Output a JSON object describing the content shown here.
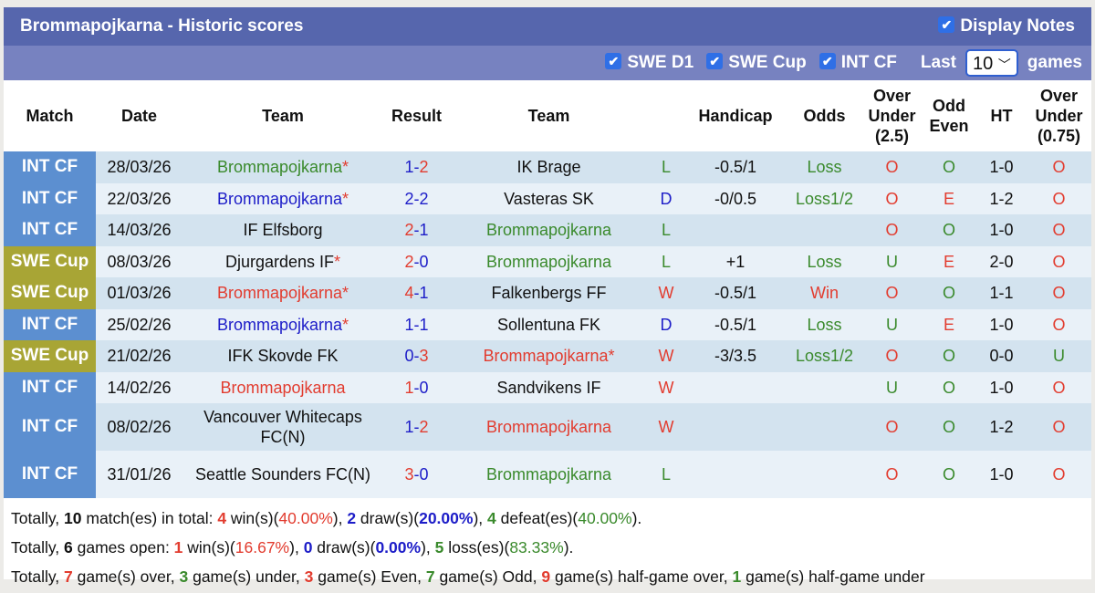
{
  "title": "Brommapojkarna - Historic scores",
  "display_notes": {
    "label": "Display Notes",
    "checked": true
  },
  "filters": [
    {
      "label": "SWE D1",
      "checked": true
    },
    {
      "label": "SWE Cup",
      "checked": true
    },
    {
      "label": "INT CF",
      "checked": true
    }
  ],
  "last_label": "Last",
  "last_value": "10",
  "games_label": "games",
  "headers": [
    "Match",
    "Date",
    "Team",
    "Result",
    "Team",
    "",
    "Handicap",
    "Odds",
    "Over Under (2.5)",
    "Odd Even",
    "HT",
    "Over Under (0.75)"
  ],
  "colors": {
    "red": "#e23c2f",
    "green": "#3a8a2c",
    "blue": "#1d1dc8",
    "int_cf": "#5c8fd0",
    "swe_cup": "#a8a535",
    "title_bar": "#5666ad",
    "filter_bar": "#7782c0"
  },
  "rows": [
    {
      "match": "INT CF",
      "date": "28/03/26",
      "home": "Brommapojkarna",
      "home_c": "g",
      "home_star": true,
      "h": "1",
      "a": "2",
      "hc": "b",
      "ac": "r",
      "away": "IK Brage",
      "away_c": "k",
      "away_star": false,
      "wl": "L",
      "wl_c": "g",
      "handicap": "-0.5/1",
      "odds": "Loss",
      "odds_c": "g",
      "ou": "O",
      "ou_c": "r",
      "oe": "O",
      "oe_c": "g",
      "ht": "1-0",
      "ou2": "O",
      "ou2_c": "r"
    },
    {
      "match": "INT CF",
      "date": "22/03/26",
      "home": "Brommapojkarna",
      "home_c": "b",
      "home_star": true,
      "h": "2",
      "a": "2",
      "hc": "b",
      "ac": "b",
      "away": "Vasteras SK",
      "away_c": "k",
      "away_star": false,
      "wl": "D",
      "wl_c": "b",
      "handicap": "-0/0.5",
      "odds": "Loss1/2",
      "odds_c": "g",
      "ou": "O",
      "ou_c": "r",
      "oe": "E",
      "oe_c": "r",
      "ht": "1-2",
      "ou2": "O",
      "ou2_c": "r"
    },
    {
      "match": "INT CF",
      "date": "14/03/26",
      "home": "IF Elfsborg",
      "home_c": "k",
      "home_star": false,
      "h": "2",
      "a": "1",
      "hc": "r",
      "ac": "b",
      "away": "Brommapojkarna",
      "away_c": "g",
      "away_star": false,
      "wl": "L",
      "wl_c": "g",
      "handicap": "",
      "odds": "",
      "odds_c": "k",
      "ou": "O",
      "ou_c": "r",
      "oe": "O",
      "oe_c": "g",
      "ht": "1-0",
      "ou2": "O",
      "ou2_c": "r"
    },
    {
      "match": "SWE Cup",
      "date": "08/03/26",
      "home": "Djurgardens IF",
      "home_c": "k",
      "home_star": true,
      "h": "2",
      "a": "0",
      "hc": "r",
      "ac": "b",
      "away": "Brommapojkarna",
      "away_c": "g",
      "away_star": false,
      "wl": "L",
      "wl_c": "g",
      "handicap": "+1",
      "odds": "Loss",
      "odds_c": "g",
      "ou": "U",
      "ou_c": "g",
      "oe": "E",
      "oe_c": "r",
      "ht": "2-0",
      "ou2": "O",
      "ou2_c": "r"
    },
    {
      "match": "SWE Cup",
      "date": "01/03/26",
      "home": "Brommapojkarna",
      "home_c": "r",
      "home_star": true,
      "h": "4",
      "a": "1",
      "hc": "r",
      "ac": "b",
      "away": "Falkenbergs FF",
      "away_c": "k",
      "away_star": false,
      "wl": "W",
      "wl_c": "r",
      "handicap": "-0.5/1",
      "odds": "Win",
      "odds_c": "r",
      "ou": "O",
      "ou_c": "r",
      "oe": "O",
      "oe_c": "g",
      "ht": "1-1",
      "ou2": "O",
      "ou2_c": "r"
    },
    {
      "match": "INT CF",
      "date": "25/02/26",
      "home": "Brommapojkarna",
      "home_c": "b",
      "home_star": true,
      "h": "1",
      "a": "1",
      "hc": "b",
      "ac": "b",
      "away": "Sollentuna FK",
      "away_c": "k",
      "away_star": false,
      "wl": "D",
      "wl_c": "b",
      "handicap": "-0.5/1",
      "odds": "Loss",
      "odds_c": "g",
      "ou": "U",
      "ou_c": "g",
      "oe": "E",
      "oe_c": "r",
      "ht": "1-0",
      "ou2": "O",
      "ou2_c": "r"
    },
    {
      "match": "SWE Cup",
      "date": "21/02/26",
      "home": "IFK Skovde FK",
      "home_c": "k",
      "home_star": false,
      "h": "0",
      "a": "3",
      "hc": "b",
      "ac": "r",
      "away": "Brommapojkarna",
      "away_c": "r",
      "away_star": true,
      "wl": "W",
      "wl_c": "r",
      "handicap": "-3/3.5",
      "odds": "Loss1/2",
      "odds_c": "g",
      "ou": "O",
      "ou_c": "r",
      "oe": "O",
      "oe_c": "g",
      "ht": "0-0",
      "ou2": "U",
      "ou2_c": "g"
    },
    {
      "match": "INT CF",
      "date": "14/02/26",
      "home": "Brommapojkarna",
      "home_c": "r",
      "home_star": false,
      "h": "1",
      "a": "0",
      "hc": "r",
      "ac": "b",
      "away": "Sandvikens IF",
      "away_c": "k",
      "away_star": false,
      "wl": "W",
      "wl_c": "r",
      "handicap": "",
      "odds": "",
      "odds_c": "k",
      "ou": "U",
      "ou_c": "g",
      "oe": "O",
      "oe_c": "g",
      "ht": "1-0",
      "ou2": "O",
      "ou2_c": "r"
    },
    {
      "match": "INT CF",
      "date": "08/02/26",
      "home": "Vancouver Whitecaps FC(N)",
      "home_c": "k",
      "home_star": false,
      "h": "1",
      "a": "2",
      "hc": "b",
      "ac": "r",
      "away": "Brommapojkarna",
      "away_c": "r",
      "away_star": false,
      "wl": "W",
      "wl_c": "r",
      "handicap": "",
      "odds": "",
      "odds_c": "k",
      "ou": "O",
      "ou_c": "r",
      "oe": "O",
      "oe_c": "g",
      "ht": "1-2",
      "ou2": "O",
      "ou2_c": "r"
    },
    {
      "match": "INT CF",
      "date": "31/01/26",
      "home": "Seattle Sounders FC(N)",
      "home_c": "k",
      "home_star": false,
      "h": "3",
      "a": "0",
      "hc": "r",
      "ac": "b",
      "away": "Brommapojkarna",
      "away_c": "g",
      "away_star": false,
      "wl": "L",
      "wl_c": "g",
      "handicap": "",
      "odds": "",
      "odds_c": "k",
      "ou": "O",
      "ou_c": "r",
      "oe": "O",
      "oe_c": "g",
      "ht": "1-0",
      "ou2": "O",
      "ou2_c": "r"
    }
  ],
  "summary": [
    [
      [
        "k",
        "Totally, "
      ],
      [
        "kb",
        "10"
      ],
      [
        "k",
        " match(es) in total: "
      ],
      [
        "r",
        "4"
      ],
      [
        "k",
        " win(s)("
      ],
      [
        "r",
        "40.00%"
      ],
      [
        "k",
        "), "
      ],
      [
        "bb",
        "2"
      ],
      [
        "k",
        " draw(s)("
      ],
      [
        "bb",
        "20.00%"
      ],
      [
        "k",
        "), "
      ],
      [
        "gb",
        "4"
      ],
      [
        "k",
        " defeat(es)("
      ],
      [
        "g",
        "40.00%"
      ],
      [
        "k",
        ")."
      ]
    ],
    [
      [
        "k",
        "Totally, "
      ],
      [
        "kb",
        "6"
      ],
      [
        "k",
        " games open: "
      ],
      [
        "r",
        "1"
      ],
      [
        "k",
        " win(s)("
      ],
      [
        "r",
        "16.67%"
      ],
      [
        "k",
        "), "
      ],
      [
        "bb",
        "0"
      ],
      [
        "k",
        " draw(s)("
      ],
      [
        "bb",
        "0.00%"
      ],
      [
        "k",
        "), "
      ],
      [
        "gb",
        "5"
      ],
      [
        "k",
        " loss(es)("
      ],
      [
        "g",
        "83.33%"
      ],
      [
        "k",
        ")."
      ]
    ],
    [
      [
        "k",
        "Totally, "
      ],
      [
        "r",
        "7"
      ],
      [
        "k",
        " game(s) over, "
      ],
      [
        "g",
        "3"
      ],
      [
        "k",
        " game(s) under, "
      ],
      [
        "r",
        "3"
      ],
      [
        "k",
        " game(s) Even, "
      ],
      [
        "g",
        "7"
      ],
      [
        "k",
        " game(s) Odd, "
      ],
      [
        "r",
        "9"
      ],
      [
        "k",
        " game(s) half-game over, "
      ],
      [
        "g",
        "1"
      ],
      [
        "k",
        " game(s) half-game under"
      ]
    ]
  ]
}
